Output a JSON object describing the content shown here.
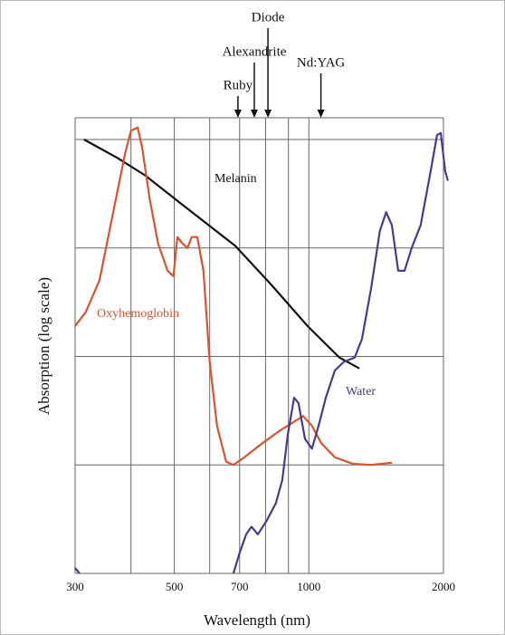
{
  "chart_data": {
    "type": "line",
    "x_label": "Wavelength (nm)",
    "y_label": "Absorption (log scale)",
    "log_x": true,
    "xlim": [
      300,
      2000
    ],
    "xticks": [
      300,
      500,
      700,
      1000,
      2000
    ],
    "x_minor_grid": [
      400,
      600,
      800,
      900
    ],
    "ylim": [
      0,
      4.2
    ],
    "yticks": [
      0,
      1,
      2,
      3,
      4
    ],
    "y_tick_labels": false,
    "grid": true,
    "series": [
      {
        "name": "Melanin",
        "color": "#111111",
        "x": [
          314,
          373,
          430,
          517,
          684,
          824,
          993,
          1170,
          1297
        ],
        "values": [
          4.0,
          3.83,
          3.67,
          3.41,
          3.02,
          2.66,
          2.28,
          1.99,
          1.89
        ]
      },
      {
        "name": "Oxyhemoglobin",
        "color": "#d9532e",
        "x": [
          300,
          317,
          340,
          365,
          388,
          400,
          414,
          424,
          440,
          460,
          483,
          498,
          508,
          522,
          535,
          547,
          563,
          581,
          600,
          623,
          653,
          678,
          717,
          787,
          864,
          971,
          1016,
          1066,
          1143,
          1255,
          1377,
          1533
        ],
        "values": [
          2.28,
          2.41,
          2.7,
          3.33,
          3.87,
          4.08,
          4.11,
          3.92,
          3.46,
          3.04,
          2.79,
          2.74,
          3.1,
          3.04,
          3.0,
          3.1,
          3.1,
          2.79,
          1.95,
          1.36,
          1.03,
          1.0,
          1.07,
          1.2,
          1.32,
          1.45,
          1.36,
          1.2,
          1.07,
          1.01,
          1.0,
          1.02
        ]
      },
      {
        "name": "Water",
        "color": "#4a3a8c",
        "x": [
          300,
          307,
          null,
          678,
          700,
          724,
          744,
          769,
          806,
          844,
          872,
          897,
          927,
          948,
          980,
          1016,
          1051,
          1091,
          1143,
          1197,
          1266,
          1314,
          1377,
          1442,
          1489,
          1533,
          1584,
          1637,
          1698,
          1778,
          1865,
          1935,
          1972,
          2018,
          2046
        ],
        "values": [
          0.05,
          0,
          null,
          0,
          0.19,
          0.36,
          0.43,
          0.36,
          0.49,
          0.65,
          0.86,
          1.28,
          1.62,
          1.57,
          1.24,
          1.15,
          1.36,
          1.62,
          1.87,
          1.95,
          1.99,
          2.16,
          2.62,
          3.16,
          3.33,
          3.21,
          2.79,
          2.79,
          3.0,
          3.21,
          3.67,
          4.04,
          4.06,
          3.71,
          3.62
        ]
      }
    ],
    "lasers": [
      {
        "label": "Ruby",
        "wavelength": 694
      },
      {
        "label": "Alexandrite",
        "wavelength": 755
      },
      {
        "label": "Diode",
        "wavelength": 810
      },
      {
        "label": "Nd:YAG",
        "wavelength": 1064
      }
    ]
  }
}
